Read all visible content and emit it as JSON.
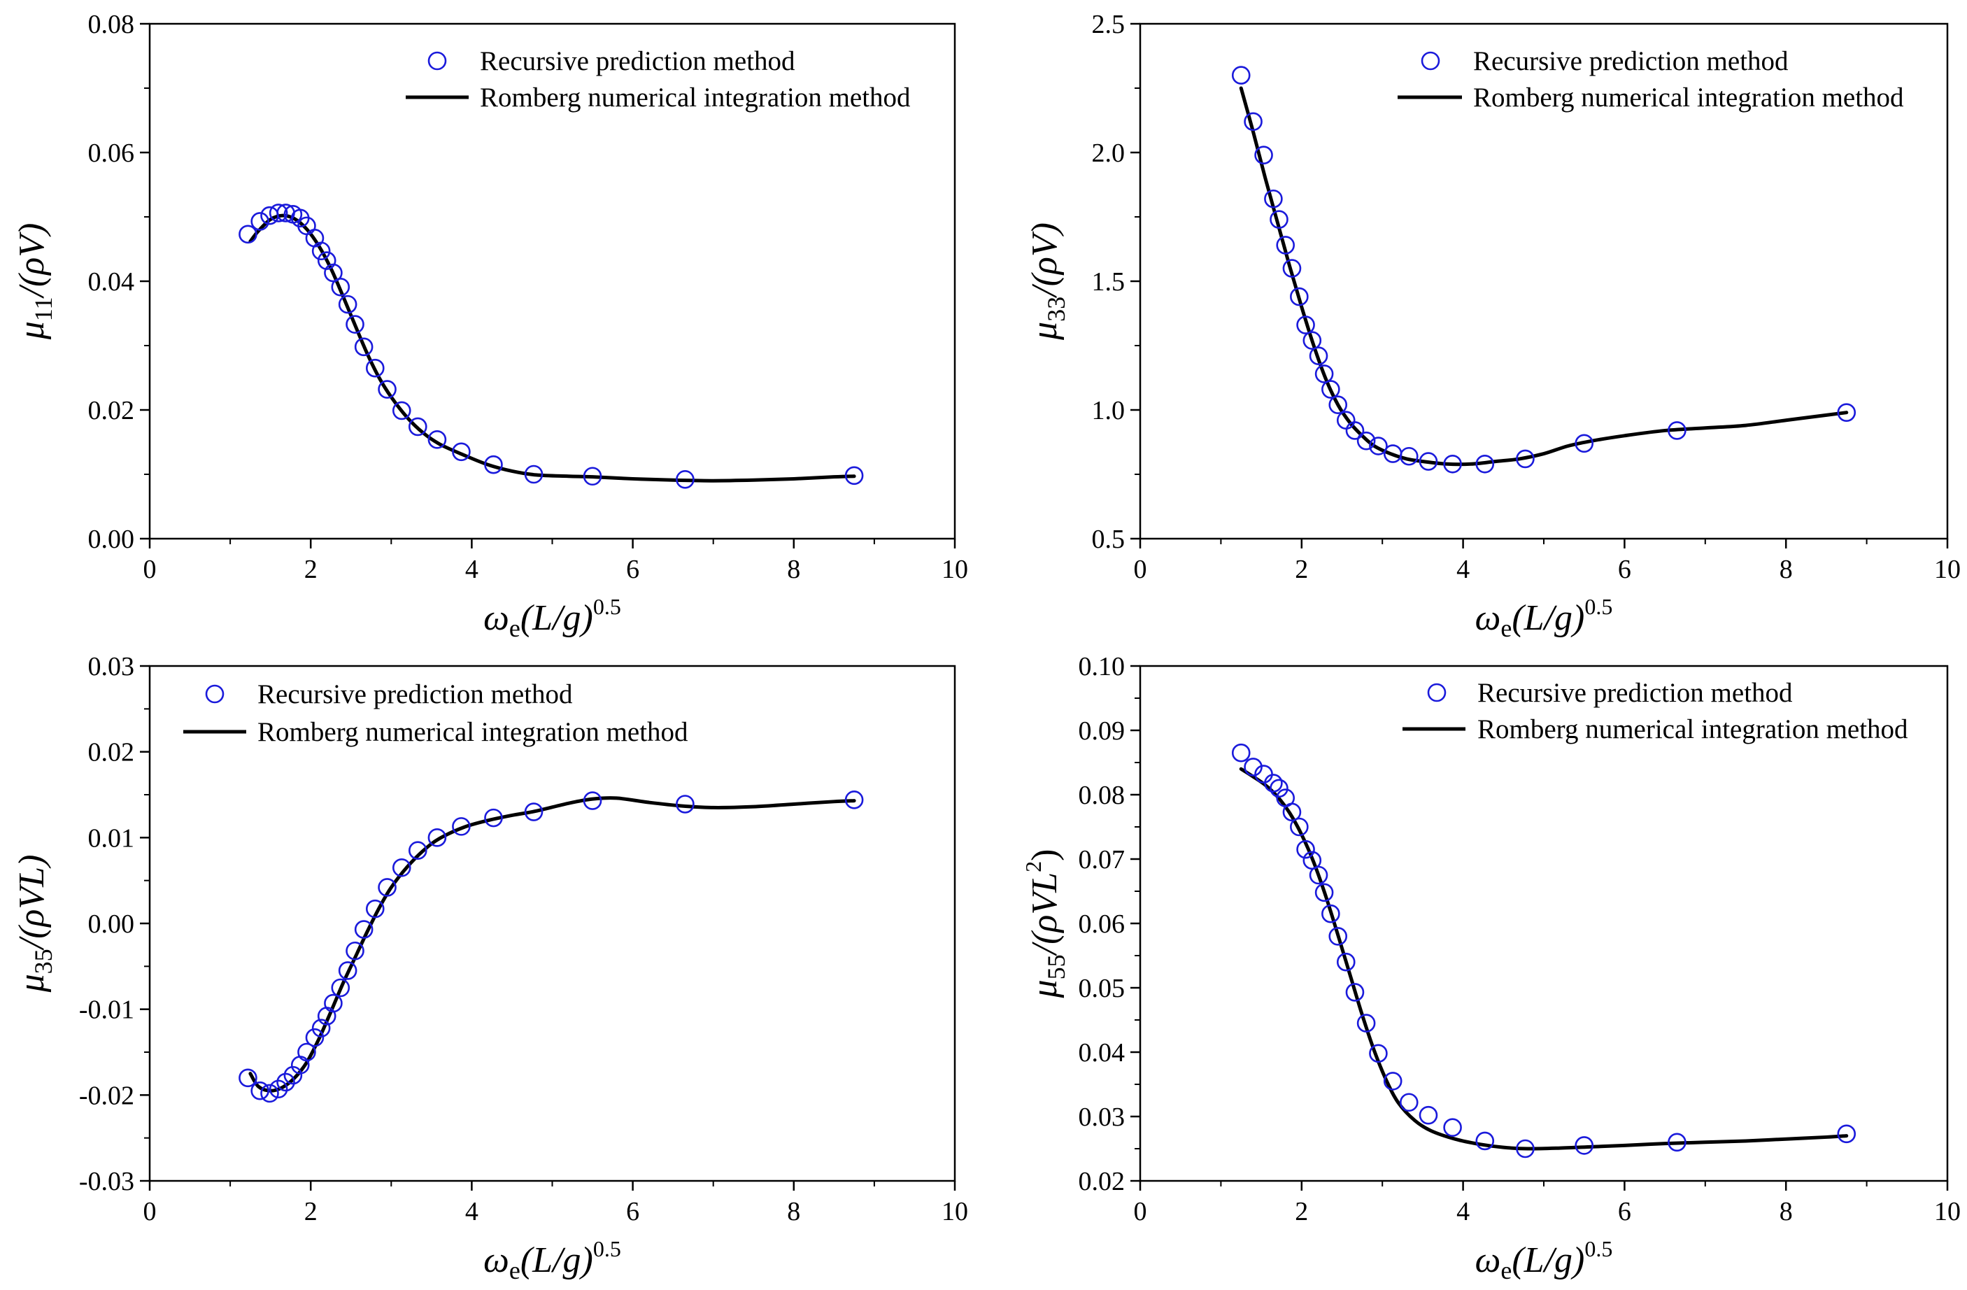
{
  "colors": {
    "marker": "#1a1adb",
    "line": "#000000",
    "axis": "#000000"
  },
  "chart_data": [
    {
      "type": "line",
      "id": "mu11",
      "xlabel": "ω_e(L/g)^0.5",
      "ylabel": "μ11/(ρV)",
      "ylabel_parts": {
        "symbol": "μ",
        "sub": "11",
        "rest": "/(ρ",
        "vol": "V",
        "close": ")"
      },
      "xlabel_parts": {
        "omega": "ω",
        "sub": "e",
        "body": "(L/g)",
        "sup": "0.5"
      },
      "xlim": [
        0,
        10
      ],
      "ylim": [
        0,
        0.08
      ],
      "x_ticks": [
        0,
        2,
        4,
        6,
        8,
        10
      ],
      "y_ticks": [
        0.0,
        0.02,
        0.04,
        0.06,
        0.08
      ],
      "x_tick_labels": [
        "0",
        "2",
        "4",
        "6",
        "8",
        "10"
      ],
      "y_tick_labels": [
        "0.00",
        "0.02",
        "0.04",
        "0.06",
        "0.08"
      ],
      "legend_position": "top-center",
      "series": [
        {
          "name": "Recursive prediction method",
          "style": "markers",
          "x": [
            1.22,
            1.37,
            1.49,
            1.6,
            1.69,
            1.78,
            1.87,
            1.95,
            2.05,
            2.13,
            2.2,
            2.28,
            2.37,
            2.46,
            2.55,
            2.66,
            2.8,
            2.95,
            3.13,
            3.33,
            3.57,
            3.87,
            4.27,
            4.77,
            5.5,
            6.65,
            8.75
          ],
          "y": [
            0.0473,
            0.0493,
            0.0502,
            0.0506,
            0.0506,
            0.0504,
            0.0498,
            0.0486,
            0.0467,
            0.0447,
            0.0432,
            0.0413,
            0.0391,
            0.0364,
            0.0333,
            0.0298,
            0.0265,
            0.0232,
            0.0199,
            0.0174,
            0.0154,
            0.0135,
            0.0115,
            0.01,
            0.0097,
            0.0092,
            0.0098
          ]
        },
        {
          "name": "Romberg numerical integration method",
          "style": "line",
          "x": [
            1.25,
            1.35,
            1.5,
            1.65,
            1.8,
            1.95,
            2.1,
            2.25,
            2.4,
            2.55,
            2.7,
            2.85,
            3.0,
            3.2,
            3.4,
            3.6,
            3.9,
            4.2,
            4.5,
            4.8,
            5.2,
            5.5,
            6.0,
            6.5,
            7.0,
            7.5,
            8.0,
            8.5,
            8.75
          ],
          "y": [
            0.0462,
            0.0478,
            0.0496,
            0.0502,
            0.0497,
            0.0481,
            0.0455,
            0.042,
            0.0377,
            0.0332,
            0.0288,
            0.025,
            0.022,
            0.0188,
            0.0164,
            0.0147,
            0.013,
            0.0115,
            0.0105,
            0.0099,
            0.0097,
            0.0096,
            0.0093,
            0.0091,
            0.009,
            0.0091,
            0.0093,
            0.0096,
            0.0097
          ]
        }
      ]
    },
    {
      "type": "line",
      "id": "mu33",
      "xlabel": "ω_e(L/g)^0.5",
      "ylabel": "μ33/(ρV)",
      "ylabel_parts": {
        "symbol": "μ",
        "sub": "33",
        "rest": "/(ρ",
        "vol": "V",
        "close": ")"
      },
      "xlabel_parts": {
        "omega": "ω",
        "sub": "e",
        "body": "(L/g)",
        "sup": "0.5"
      },
      "xlim": [
        0,
        10
      ],
      "ylim": [
        0.5,
        2.5
      ],
      "x_ticks": [
        0,
        2,
        4,
        6,
        8,
        10
      ],
      "y_ticks": [
        0.5,
        1.0,
        1.5,
        2.0,
        2.5
      ],
      "x_tick_labels": [
        "0",
        "2",
        "4",
        "6",
        "8",
        "10"
      ],
      "y_tick_labels": [
        "0.5",
        "1.0",
        "1.5",
        "2.0",
        "2.5"
      ],
      "legend_position": "top-right",
      "series": [
        {
          "name": "Recursive prediction method",
          "style": "markers",
          "x": [
            1.25,
            1.4,
            1.53,
            1.65,
            1.72,
            1.8,
            1.88,
            1.97,
            2.05,
            2.13,
            2.21,
            2.28,
            2.36,
            2.45,
            2.55,
            2.66,
            2.8,
            2.95,
            3.13,
            3.33,
            3.57,
            3.87,
            4.27,
            4.77,
            5.5,
            6.65,
            8.75
          ],
          "y": [
            2.3,
            2.12,
            1.99,
            1.82,
            1.74,
            1.64,
            1.55,
            1.44,
            1.33,
            1.27,
            1.21,
            1.14,
            1.08,
            1.02,
            0.96,
            0.92,
            0.88,
            0.86,
            0.83,
            0.82,
            0.8,
            0.79,
            0.79,
            0.81,
            0.87,
            0.92,
            0.99
          ]
        },
        {
          "name": "Romberg numerical integration method",
          "style": "line",
          "x": [
            1.25,
            1.4,
            1.55,
            1.7,
            1.85,
            2.0,
            2.15,
            2.3,
            2.45,
            2.6,
            2.75,
            2.9,
            3.1,
            3.3,
            3.5,
            3.8,
            4.1,
            4.4,
            4.7,
            5.0,
            5.3,
            5.6,
            6.0,
            6.5,
            7.0,
            7.5,
            8.0,
            8.5,
            8.75
          ],
          "y": [
            2.25,
            2.08,
            1.9,
            1.73,
            1.56,
            1.4,
            1.25,
            1.12,
            1.02,
            0.95,
            0.9,
            0.86,
            0.83,
            0.81,
            0.8,
            0.79,
            0.79,
            0.8,
            0.81,
            0.83,
            0.86,
            0.88,
            0.9,
            0.92,
            0.93,
            0.94,
            0.96,
            0.98,
            0.99
          ]
        }
      ]
    },
    {
      "type": "line",
      "id": "mu35",
      "xlabel": "ω_e(L/g)^0.5",
      "ylabel": "μ35/(ρVL)",
      "ylabel_parts": {
        "symbol": "μ",
        "sub": "35",
        "rest": "/(ρ",
        "vol": "V",
        "close": "L)"
      },
      "xlabel_parts": {
        "omega": "ω",
        "sub": "e",
        "body": "(L/g)",
        "sup": "0.5"
      },
      "xlim": [
        0,
        10
      ],
      "ylim": [
        -0.03,
        0.03
      ],
      "x_ticks": [
        0,
        2,
        4,
        6,
        8,
        10
      ],
      "y_ticks": [
        -0.03,
        -0.02,
        -0.01,
        0.0,
        0.01,
        0.02,
        0.03
      ],
      "x_tick_labels": [
        "0",
        "2",
        "4",
        "6",
        "8",
        "10"
      ],
      "y_tick_labels": [
        "-0.03",
        "-0.02",
        "-0.01",
        "0.00",
        "0.01",
        "0.02",
        "0.03"
      ],
      "legend_position": "top-left",
      "series": [
        {
          "name": "Recursive prediction method",
          "style": "markers",
          "x": [
            1.22,
            1.37,
            1.49,
            1.6,
            1.69,
            1.78,
            1.87,
            1.95,
            2.05,
            2.13,
            2.2,
            2.28,
            2.37,
            2.46,
            2.55,
            2.66,
            2.8,
            2.95,
            3.13,
            3.33,
            3.57,
            3.87,
            4.27,
            4.77,
            5.5,
            6.65,
            8.75
          ],
          "y": [
            -0.018,
            -0.0195,
            -0.0198,
            -0.0193,
            -0.0185,
            -0.0177,
            -0.0165,
            -0.015,
            -0.0133,
            -0.0122,
            -0.0108,
            -0.0093,
            -0.0075,
            -0.0055,
            -0.0032,
            -0.0007,
            0.0017,
            0.0042,
            0.0065,
            0.0085,
            0.01,
            0.0113,
            0.0123,
            0.013,
            0.0143,
            0.0139,
            0.0144
          ]
        },
        {
          "name": "Romberg numerical integration method",
          "style": "line",
          "x": [
            1.25,
            1.35,
            1.5,
            1.65,
            1.8,
            1.95,
            2.1,
            2.25,
            2.4,
            2.55,
            2.7,
            2.85,
            3.0,
            3.2,
            3.4,
            3.6,
            3.9,
            4.2,
            4.5,
            4.8,
            5.2,
            5.5,
            5.8,
            6.2,
            6.6,
            7.0,
            7.5,
            8.0,
            8.5,
            8.75
          ],
          "y": [
            -0.0175,
            -0.019,
            -0.0195,
            -0.0191,
            -0.018,
            -0.0162,
            -0.0135,
            -0.0103,
            -0.007,
            -0.004,
            -0.001,
            0.0018,
            0.0042,
            0.0066,
            0.0085,
            0.0099,
            0.0112,
            0.012,
            0.0126,
            0.0131,
            0.014,
            0.0145,
            0.0146,
            0.0141,
            0.0137,
            0.0135,
            0.0136,
            0.0139,
            0.0142,
            0.0143
          ]
        }
      ]
    },
    {
      "type": "line",
      "id": "mu55",
      "xlabel": "ω_e(L/g)^0.5",
      "ylabel": "μ55/(ρVL^2)",
      "ylabel_parts": {
        "symbol": "μ",
        "sub": "55",
        "rest": "/(ρ",
        "vol": "V",
        "mid": "L",
        "sup": "2",
        "close": ")"
      },
      "xlabel_parts": {
        "omega": "ω",
        "sub": "e",
        "body": "(L/g)",
        "sup": "0.5"
      },
      "xlim": [
        0,
        10
      ],
      "ylim": [
        0.02,
        0.1
      ],
      "x_ticks": [
        0,
        2,
        4,
        6,
        8,
        10
      ],
      "y_ticks": [
        0.02,
        0.03,
        0.04,
        0.05,
        0.06,
        0.07,
        0.08,
        0.09,
        0.1
      ],
      "x_tick_labels": [
        "0",
        "2",
        "4",
        "6",
        "8",
        "10"
      ],
      "y_tick_labels": [
        "0.02",
        "0.03",
        "0.04",
        "0.05",
        "0.06",
        "0.07",
        "0.08",
        "0.09",
        "0.10"
      ],
      "legend_position": "top-right",
      "series": [
        {
          "name": "Recursive prediction method",
          "style": "markers",
          "x": [
            1.25,
            1.4,
            1.53,
            1.65,
            1.72,
            1.8,
            1.88,
            1.97,
            2.05,
            2.13,
            2.21,
            2.28,
            2.36,
            2.45,
            2.55,
            2.66,
            2.8,
            2.95,
            3.13,
            3.33,
            3.57,
            3.87,
            4.27,
            4.77,
            5.5,
            6.65,
            8.75
          ],
          "y": [
            0.0865,
            0.0843,
            0.0832,
            0.0818,
            0.081,
            0.0795,
            0.0773,
            0.075,
            0.0715,
            0.0698,
            0.0675,
            0.0648,
            0.0615,
            0.058,
            0.054,
            0.0493,
            0.0445,
            0.0398,
            0.0355,
            0.0322,
            0.0302,
            0.0283,
            0.0262,
            0.025,
            0.0255,
            0.026,
            0.0273
          ]
        },
        {
          "name": "Romberg numerical integration method",
          "style": "line",
          "x": [
            1.25,
            1.4,
            1.55,
            1.7,
            1.85,
            2.0,
            2.15,
            2.3,
            2.45,
            2.6,
            2.75,
            2.9,
            3.05,
            3.2,
            3.4,
            3.6,
            3.9,
            4.2,
            4.5,
            4.8,
            5.2,
            5.6,
            6.0,
            6.5,
            7.0,
            7.5,
            8.0,
            8.5,
            8.75
          ],
          "y": [
            0.084,
            0.0828,
            0.0815,
            0.0797,
            0.0772,
            0.0738,
            0.0695,
            0.0642,
            0.0582,
            0.052,
            0.0458,
            0.0402,
            0.0356,
            0.0321,
            0.0294,
            0.0278,
            0.0265,
            0.0257,
            0.0252,
            0.025,
            0.0251,
            0.0253,
            0.0255,
            0.0258,
            0.026,
            0.0262,
            0.0265,
            0.0268,
            0.027
          ]
        }
      ]
    }
  ]
}
